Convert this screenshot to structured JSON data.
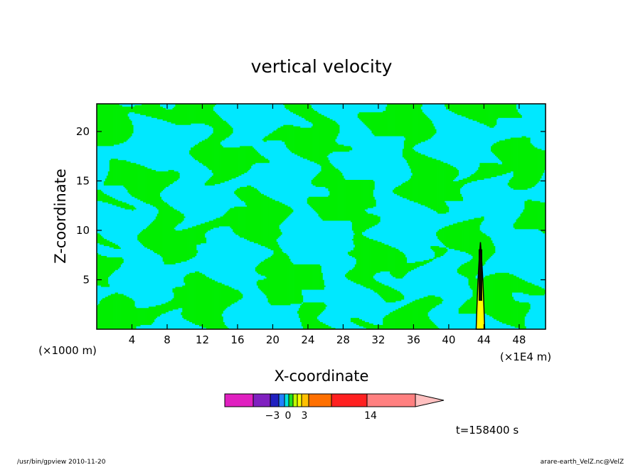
{
  "chart_data": {
    "type": "heatmap",
    "title": "vertical velocity",
    "xlabel": "X-coordinate",
    "ylabel": "Z-coordinate",
    "x_unit_left": "(×1000 m)",
    "x_unit_right": "(×1E4 m)",
    "x_ticks": [
      "4",
      "8",
      "12",
      "16",
      "20",
      "24",
      "28",
      "32",
      "36",
      "40",
      "44",
      "48"
    ],
    "y_ticks": [
      "5",
      "10",
      "15",
      "20"
    ],
    "xlim": [
      0,
      51
    ],
    "ylim": [
      0,
      22.8
    ],
    "time_label": "t=158400 s",
    "colorbar": {
      "labels": [
        {
          "text": "−3",
          "value": -3
        },
        {
          "text": "0",
          "value": 0
        },
        {
          "text": "3",
          "value": 3
        },
        {
          "text": "14",
          "value": 14
        }
      ],
      "colors": [
        "#e020c0",
        "#8020c0",
        "#2020c0",
        "#2080ff",
        "#00e0e0",
        "#20e020",
        "#c0ff00",
        "#ffff00",
        "#ffc000",
        "#ff7000",
        "#ff2020",
        "#ff8080",
        "#ffc0c0"
      ]
    },
    "field_colors": {
      "negative": "#00e8ff",
      "positive": "#00ee00",
      "contour": "#000000"
    },
    "updraft_column": {
      "x": 43.6,
      "z_top": 8.8
    }
  },
  "footer": {
    "left": "/usr/bin/gpview  2010-11-20",
    "right": "arare-earth_VelZ.nc@VelZ"
  }
}
